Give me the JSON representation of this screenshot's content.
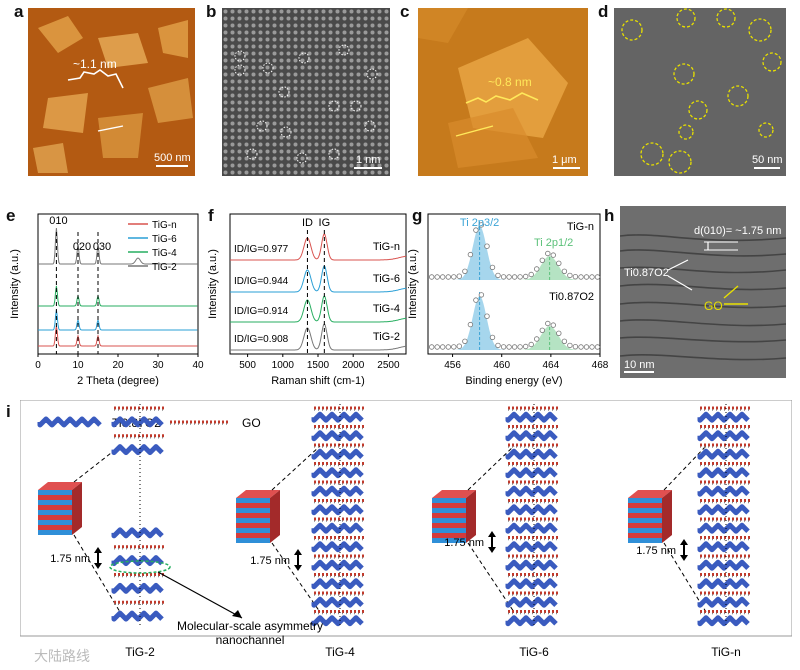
{
  "letters": [
    "a",
    "b",
    "c",
    "d",
    "e",
    "f",
    "g",
    "h",
    "i"
  ],
  "panel_a": {
    "height_label": "~1.1 nm",
    "scale": "500 nm",
    "colors": {
      "bg": "#b35a12",
      "flake": "#e3a24a"
    }
  },
  "panel_b": {
    "scale": "1 nm"
  },
  "panel_c": {
    "height_label": "~0.8 nm",
    "scale": "1 μm"
  },
  "panel_d": {
    "scale": "50 nm"
  },
  "panel_h": {
    "spacing_label": "d(010)= ~1.75 nm",
    "ti_label": "Ti0.87O2",
    "go_label": "GO",
    "scale": "10 nm"
  },
  "chart_data": [
    {
      "panel": "e",
      "type": "line",
      "xlabel": "2 Theta (degree)",
      "ylabel": "Intensity (a.u.)",
      "xlim": [
        0,
        40
      ],
      "xticks": [
        0,
        10,
        20,
        30,
        40
      ],
      "peak_labels": [
        {
          "text": "010",
          "x": 4.6
        },
        {
          "text": "020",
          "x": 10.0
        },
        {
          "text": "030",
          "x": 15.0
        }
      ],
      "peaks": [
        4.6,
        10.0,
        15.0
      ],
      "series": [
        {
          "name": "TiG-n",
          "color": "#d9534f",
          "offset": 0
        },
        {
          "name": "TiG-6",
          "color": "#2a9fd6",
          "offset": 1
        },
        {
          "name": "TiG-4",
          "color": "#27ae60",
          "offset": 2
        },
        {
          "name": "TiG-2",
          "color": "#777777",
          "offset": 3
        }
      ]
    },
    {
      "panel": "f",
      "type": "line",
      "xlabel": "Raman shift (cm-1)",
      "ylabel": "Intensity (a.u.)",
      "xlim": [
        250,
        2750
      ],
      "xticks": [
        500,
        1000,
        1500,
        2000,
        2500
      ],
      "band_labels": [
        {
          "text": "ID",
          "x": 1350
        },
        {
          "text": "IG",
          "x": 1590
        }
      ],
      "series": [
        {
          "name": "TiG-n",
          "ratio": "ID/IG=0.977",
          "color": "#d9534f"
        },
        {
          "name": "TiG-6",
          "ratio": "ID/IG=0.944",
          "color": "#2a9fd6"
        },
        {
          "name": "TiG-4",
          "ratio": "ID/IG=0.914",
          "color": "#27ae60"
        },
        {
          "name": "TiG-2",
          "ratio": "ID/IG=0.908",
          "color": "#777777"
        }
      ]
    },
    {
      "panel": "g",
      "type": "line",
      "xlabel": "Binding energy (eV)",
      "ylabel": "Intensity (a.u.)",
      "xlim": [
        454,
        468
      ],
      "xticks": [
        456,
        460,
        464,
        468
      ],
      "peaks": [
        {
          "label": "Ti 2p3/2",
          "x": 458.2,
          "color": "#3aa3d6"
        },
        {
          "label": "Ti 2p1/2",
          "x": 463.9,
          "color": "#5cc17a"
        }
      ],
      "series": [
        {
          "name": "TiG-n"
        },
        {
          "name": "Ti0.87O2"
        }
      ]
    }
  ],
  "panel_i": {
    "legend_ti": "Ti0.87O2",
    "legend_go": "GO",
    "spacing": "1.75 nm",
    "annotation_line1": "Molecular-scale asymmetry",
    "annotation_line2": "nanochannel",
    "samples": [
      "TiG-2",
      "TiG-4",
      "TiG-6",
      "TiG-n"
    ]
  },
  "watermark": "大陆路线"
}
